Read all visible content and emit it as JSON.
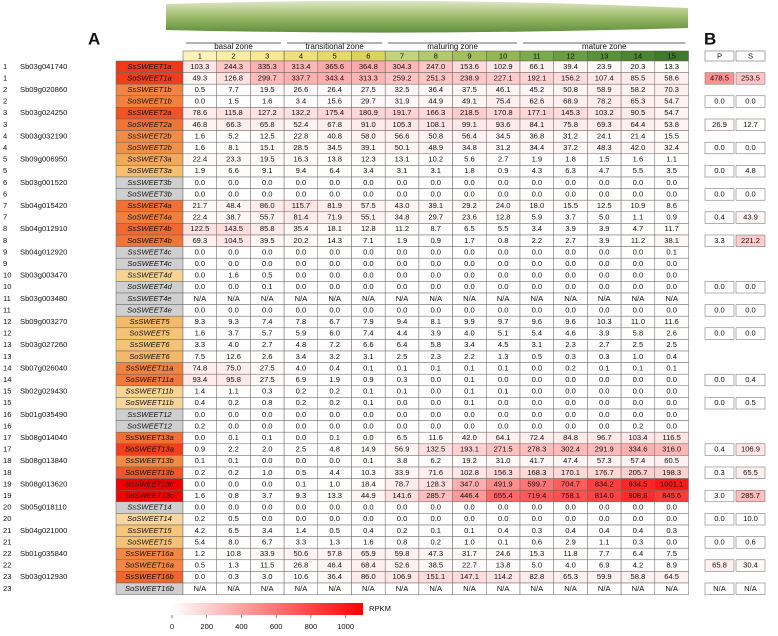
{
  "header": {
    "panel_a": "A",
    "panel_b": "B",
    "zones": [
      {
        "label": "basal zone",
        "columns": [
          "1",
          "2",
          "3"
        ]
      },
      {
        "label": "transitional zone",
        "columns": [
          "4",
          "5",
          "6"
        ]
      },
      {
        "label": "maturing zone",
        "columns": [
          "7",
          "8",
          "9",
          "10"
        ]
      },
      {
        "label": "mature zone",
        "columns": [
          "11",
          "12",
          "13",
          "14",
          "15"
        ]
      }
    ],
    "b_columns": [
      "P",
      "S"
    ]
  },
  "rows": [
    {
      "index": "1",
      "locus": "Sb03g041740",
      "gene": "SsSWEET1a",
      "values": [
        "103.3",
        "244.3",
        "335.3",
        "313.4",
        "365.6",
        "364.8",
        "304.3",
        "247.0",
        "153.6",
        "102.9",
        "66.1",
        "39.4",
        "23.9",
        "20.3",
        "13.3"
      ]
    },
    {
      "index": "1",
      "gene": "SoSWEET1a",
      "values": [
        "49.3",
        "126.8",
        "299.7",
        "337.7",
        "343.4",
        "313.3",
        "259.2",
        "251.3",
        "238.9",
        "227.1",
        "192.1",
        "156.2",
        "107.4",
        "85.5",
        "58.6"
      ],
      "b_values": [
        "478.5",
        "253.5"
      ]
    },
    {
      "index": "2",
      "locus": "Sb09g020860",
      "gene": "SsSWEET1b",
      "values": [
        "0.5",
        "7.7",
        "19.5",
        "26.6",
        "26.4",
        "27.5",
        "32.5",
        "36.4",
        "37.5",
        "46.1",
        "45.2",
        "50.8",
        "58.9",
        "58.2",
        "70.3"
      ]
    },
    {
      "index": "2",
      "gene": "SoSWEET1b",
      "values": [
        "0.0",
        "1.5",
        "1.6",
        "3.4",
        "15.6",
        "29.7",
        "31.9",
        "44.9",
        "49.1",
        "75.4",
        "62.6",
        "68.9",
        "78.2",
        "65.3",
        "54.7"
      ],
      "b_values": [
        "0.0",
        "0.0"
      ]
    },
    {
      "index": "3",
      "locus": "Sb03g024250",
      "gene": "SsSWEET2a",
      "values": [
        "78.6",
        "115.8",
        "127.2",
        "132.2",
        "175.4",
        "180.9",
        "191.7",
        "166.3",
        "218.5",
        "170.8",
        "177.1",
        "145.3",
        "103.2",
        "90.5",
        "54.7"
      ]
    },
    {
      "index": "3",
      "gene": "SoSWEET2a",
      "values": [
        "46.8",
        "66.3",
        "65.8",
        "52.4",
        "67.8",
        "91.0",
        "105.3",
        "108.1",
        "99.1",
        "93.6",
        "84.1",
        "75.8",
        "69.3",
        "64.4",
        "53.8"
      ],
      "b_values": [
        "26.9",
        "12.7"
      ]
    },
    {
      "index": "4",
      "locus": "Sb03g032190",
      "gene": "SsSWEET2b",
      "values": [
        "1.6",
        "5.2",
        "12.5",
        "22.8",
        "40.8",
        "58.0",
        "56.6",
        "50.8",
        "56.4",
        "34.5",
        "36.8",
        "31.2",
        "24.1",
        "21.4",
        "15.5"
      ]
    },
    {
      "index": "4",
      "gene": "SoSWEET2b",
      "values": [
        "1.6",
        "8.1",
        "15.1",
        "28.5",
        "34.5",
        "39.1",
        "50.1",
        "48.9",
        "34.8",
        "31.2",
        "34.4",
        "37.2",
        "48.3",
        "42.0",
        "32.4"
      ],
      "b_values": [
        "0.0",
        "0.0"
      ]
    },
    {
      "index": "5",
      "locus": "Sb09g006950",
      "gene": "SsSWEET3a",
      "values": [
        "22.4",
        "23.3",
        "19.5",
        "16.3",
        "13.8",
        "12.3",
        "13.1",
        "10.2",
        "5.6",
        "2.7",
        "1.9",
        "1.8",
        "1.5",
        "1.6",
        "1.1"
      ]
    },
    {
      "index": "5",
      "gene": "SoSWEET3a",
      "values": [
        "1.9",
        "6.6",
        "9.1",
        "9.4",
        "6.4",
        "3.4",
        "3.1",
        "3.1",
        "1.8",
        "0.9",
        "4.3",
        "6.3",
        "4.7",
        "5.5",
        "3.5"
      ],
      "b_values": [
        "0.0",
        "4.8"
      ]
    },
    {
      "index": "6",
      "locus": "Sb03g001520",
      "gene": "SsSWEET3b",
      "values": [
        "0.0",
        "0.0",
        "0.0",
        "0.0",
        "0.0",
        "0.0",
        "0.0",
        "0.0",
        "0.0",
        "0.0",
        "0.0",
        "0.0",
        "0.0",
        "0.0",
        "0.0"
      ]
    },
    {
      "index": "6",
      "gene": "SoSWEET3b",
      "values": [
        "0.0",
        "0.0",
        "0.0",
        "0.0",
        "0.0",
        "0.0",
        "0.0",
        "0.0",
        "0.0",
        "0.0",
        "0.0",
        "0.0",
        "0.0",
        "0.0",
        "0.0"
      ],
      "b_values": [
        "0.0",
        "0.0"
      ]
    },
    {
      "index": "7",
      "locus": "Sb04g015420",
      "gene": "SsSWEET4a",
      "values": [
        "21.7",
        "48.4",
        "86.0",
        "115.7",
        "81.9",
        "57.5",
        "43.0",
        "39.1",
        "29.2",
        "24.0",
        "18.0",
        "15.5",
        "12.5",
        "10.9",
        "8.6"
      ]
    },
    {
      "index": "7",
      "gene": "SoSWEET4a",
      "values": [
        "22.4",
        "38.7",
        "55.7",
        "81.4",
        "71.9",
        "55.1",
        "34.8",
        "29.7",
        "23.6",
        "12.8",
        "5.9",
        "3.7",
        "5.0",
        "1.1",
        "0.9"
      ],
      "b_values": [
        "0.4",
        "43.9"
      ]
    },
    {
      "index": "8",
      "locus": "Sb04g012910",
      "gene": "SsSWEET4b",
      "values": [
        "122.5",
        "143.5",
        "85.8",
        "35.4",
        "18.1",
        "12.8",
        "11.2",
        "8.7",
        "6.5",
        "5.5",
        "3.4",
        "3.9",
        "3.9",
        "4.7",
        "11.7"
      ]
    },
    {
      "index": "8",
      "gene": "SoSWEET4b",
      "values": [
        "69.3",
        "104.5",
        "39.5",
        "20.2",
        "14.3",
        "7.1",
        "1.9",
        "0.9",
        "1.7",
        "0.8",
        "2.2",
        "2.7",
        "3.9",
        "11.2",
        "38.1"
      ],
      "b_values": [
        "3.3",
        "221.2"
      ]
    },
    {
      "index": "9",
      "locus": "Sb04g012920",
      "gene": "SsSWEET4c",
      "values": [
        "0.0",
        "0.0",
        "0.0",
        "0.0",
        "0.0",
        "0.0",
        "0.0",
        "0.0",
        "0.0",
        "0.0",
        "0.0",
        "0.0",
        "0.0",
        "0.0",
        "0.1"
      ]
    },
    {
      "index": "9",
      "gene": "SoSWEET4c",
      "values": [
        "0.0",
        "0.0",
        "0.0",
        "0.0",
        "0.0",
        "0.0",
        "0.0",
        "0.0",
        "0.0",
        "0.0",
        "0.0",
        "0.0",
        "0.0",
        "0.0",
        "0.0"
      ]
    },
    {
      "index": "10",
      "locus": "Sb03g003470",
      "gene": "SsSWEET4d",
      "values": [
        "0.0",
        "1.6",
        "0.5",
        "0.0",
        "0.0",
        "0.0",
        "0.0",
        "0.0",
        "0.0",
        "0.0",
        "0.0",
        "0.0",
        "0.0",
        "0.0",
        "0.0"
      ]
    },
    {
      "index": "10",
      "gene": "SoSWEET4d",
      "values": [
        "0.0",
        "0.0",
        "0.1",
        "0.0",
        "0.0",
        "0.0",
        "0.0",
        "0.0",
        "0.0",
        "0.0",
        "0.0",
        "0.0",
        "0.0",
        "0.0",
        "0.0"
      ],
      "b_values": [
        "0.0",
        "0.0"
      ]
    },
    {
      "index": "11",
      "locus": "Sb03g003480",
      "gene": "SsSWEET4e",
      "values": [
        "N/A",
        "N/A",
        "N/A",
        "N/A",
        "N/A",
        "N/A",
        "N/A",
        "N/A",
        "N/A",
        "N/A",
        "N/A",
        "N/A",
        "N/A",
        "N/A",
        "N/A"
      ]
    },
    {
      "index": "11",
      "gene": "SoSWEET4e",
      "values": [
        "0.0",
        "0.0",
        "0.0",
        "0.0",
        "0.0",
        "0.0",
        "0.0",
        "0.0",
        "0.0",
        "0.0",
        "0.0",
        "0.0",
        "0.0",
        "0.0",
        "0.0"
      ],
      "b_values": [
        "0.0",
        "0.0"
      ]
    },
    {
      "index": "12",
      "locus": "Sb09g003270",
      "gene": "SsSWEET5",
      "values": [
        "9.3",
        "9.3",
        "7.4",
        "7.8",
        "6.7",
        "7.9",
        "9.4",
        "8.1",
        "9.9",
        "9.7",
        "9.6",
        "9.6",
        "10.3",
        "11.0",
        "11.6"
      ]
    },
    {
      "index": "12",
      "gene": "SoSWEET5",
      "values": [
        "1.6",
        "3.7",
        "5.7",
        "5.9",
        "6.0",
        "7.4",
        "4.4",
        "3.9",
        "4.0",
        "5.1",
        "5.4",
        "4.6",
        "3.9",
        "5.8",
        "2.6"
      ],
      "b_values": [
        "0.0",
        "0.0"
      ]
    },
    {
      "index": "13",
      "locus": "Sb03g027260",
      "gene": "SsSWEET6",
      "values": [
        "3.3",
        "4.0",
        "2.7",
        "4.8",
        "7.2",
        "6.6",
        "6.4",
        "5.8",
        "3.4",
        "4.5",
        "3.1",
        "2.3",
        "2.7",
        "2.5",
        "2.5"
      ]
    },
    {
      "index": "13",
      "gene": "SoSWEET6",
      "values": [
        "7.5",
        "12.6",
        "2.6",
        "3.4",
        "3.2",
        "3.1",
        "2.5",
        "2.3",
        "2.2",
        "1.3",
        "0.5",
        "0.3",
        "0.3",
        "1.0",
        "0.4"
      ]
    },
    {
      "index": "14",
      "locus": "Sb07g026040",
      "gene": "SsSWEET11a",
      "values": [
        "74.8",
        "75.0",
        "27.5",
        "4.0",
        "0.4",
        "0.1",
        "0.1",
        "0.1",
        "0.1",
        "0.1",
        "0.0",
        "0.2",
        "0.1",
        "0.1",
        "0.1"
      ]
    },
    {
      "index": "14",
      "gene": "SoSWEET11a",
      "values": [
        "93.4",
        "95.8",
        "27.5",
        "6.9",
        "1.9",
        "0.9",
        "0.3",
        "0.0",
        "0.1",
        "0.0",
        "0.0",
        "0.0",
        "0.0",
        "0.0",
        "0.0"
      ],
      "b_values": [
        "0.0",
        "0.4"
      ]
    },
    {
      "index": "15",
      "locus": "Sb02g029430",
      "gene": "SsSWEET11b",
      "values": [
        "1.4",
        "1.1",
        "0.3",
        "0.2",
        "0.2",
        "0.1",
        "0.1",
        "0.0",
        "0.1",
        "0.1",
        "0.0",
        "0.0",
        "0.0",
        "0.0",
        "0.0"
      ]
    },
    {
      "index": "15",
      "gene": "SoSWEET11b",
      "values": [
        "0.4",
        "0.2",
        "0.8",
        "0.2",
        "0.2",
        "0.1",
        "0.0",
        "0.0",
        "0.1",
        "0.0",
        "0.0",
        "0.0",
        "0.0",
        "0.0",
        "0.0"
      ],
      "b_values": [
        "0.0",
        "0.5"
      ]
    },
    {
      "index": "16",
      "locus": "Sb01g035490",
      "gene": "SsSWEET12",
      "values": [
        "0.0",
        "0.0",
        "0.0",
        "0.0",
        "0.0",
        "0.0",
        "0.0",
        "0.0",
        "0.0",
        "0.0",
        "0.0",
        "0.0",
        "0.0",
        "0.0",
        "0.0"
      ]
    },
    {
      "index": "16",
      "gene": "SoSWEET12",
      "values": [
        "0.2",
        "0.0",
        "0.0",
        "0.0",
        "0.0",
        "0.0",
        "0.0",
        "0.0",
        "0.0",
        "0.0",
        "0.0",
        "0.0",
        "0.0",
        "0.2",
        "0.0"
      ]
    },
    {
      "index": "17",
      "locus": "Sb08g014040",
      "gene": "SsSWEET13a",
      "values": [
        "0.0",
        "0.1",
        "0.1",
        "0.0",
        "0.1",
        "0.0",
        "6.5",
        "11.6",
        "42.0",
        "64.1",
        "72.4",
        "84.8",
        "96.7",
        "103.4",
        "116.5"
      ]
    },
    {
      "index": "17",
      "gene": "SoSWEET13a",
      "values": [
        "0.9",
        "2.2",
        "2.0",
        "2.5",
        "4.8",
        "14.9",
        "56.9",
        "132.5",
        "193.1",
        "271.5",
        "278.3",
        "302.4",
        "291.9",
        "334.6",
        "316.0"
      ],
      "b_values": [
        "0.4",
        "106.9"
      ]
    },
    {
      "index": "18",
      "locus": "Sb08g013840",
      "gene": "SsSWEET13b",
      "values": [
        "0.1",
        "0.1",
        "0.0",
        "0.0",
        "0.0",
        "0.1",
        "3.8",
        "6.2",
        "19.2",
        "31.0",
        "41.7",
        "47.4",
        "57.3",
        "57.4",
        "60.5"
      ]
    },
    {
      "index": "18",
      "gene": "SoSWEET13b",
      "values": [
        "0.2",
        "0.2",
        "1.0",
        "0.5",
        "4.4",
        "10.3",
        "33.9",
        "71.6",
        "102.8",
        "156.3",
        "168.3",
        "170.1",
        "176.7",
        "205.7",
        "198.3"
      ],
      "b_values": [
        "0.3",
        "65.5"
      ]
    },
    {
      "index": "19",
      "locus": "Sb08g013620",
      "gene": "SsSWEET13c",
      "values": [
        "0.0",
        "0.0",
        "0.0",
        "0.1",
        "1.0",
        "18.4",
        "78.7",
        "128.3",
        "347.0",
        "491.9",
        "599.7",
        "704.7",
        "834.2",
        "934.5",
        "1001.1"
      ]
    },
    {
      "index": "19",
      "gene": "SoSWEET13c",
      "values": [
        "1.6",
        "0.8",
        "3.7",
        "9.3",
        "13.3",
        "44.9",
        "141.6",
        "285.7",
        "446.4",
        "655.4",
        "719.4",
        "758.1",
        "814.0",
        "908.8",
        "845.6"
      ],
      "b_values": [
        "3.0",
        "285.7"
      ]
    },
    {
      "index": "20",
      "locus": "Sb05g018110",
      "gene": "SsSWEET14",
      "values": [
        "0.0",
        "0.0",
        "0.0",
        "0.0",
        "0.0",
        "0.0",
        "0.0",
        "0.0",
        "0.0",
        "0.0",
        "0.0",
        "0.0",
        "0.0",
        "0.0",
        "0.0"
      ]
    },
    {
      "index": "20",
      "gene": "SoSWEET14",
      "values": [
        "0.2",
        "0.5",
        "0.0",
        "0.0",
        "0.0",
        "0.0",
        "0.0",
        "0.0",
        "0.0",
        "0.0",
        "0.0",
        "0.0",
        "0.0",
        "0.0",
        "0.0"
      ],
      "b_values": [
        "0.0",
        "10.0"
      ]
    },
    {
      "index": "21",
      "locus": "Sb04g021000",
      "gene": "SsSWEET15",
      "values": [
        "4.2",
        "6.5",
        "3.4",
        "1.4",
        "0.5",
        "0.4",
        "0.2",
        "0.1",
        "0.1",
        "0.4",
        "0.3",
        "0.4",
        "0.4",
        "0.4",
        "0.3"
      ]
    },
    {
      "index": "21",
      "gene": "SoSWEET15",
      "values": [
        "5.4",
        "8.0",
        "6.7",
        "3.3",
        "1.3",
        "1.6",
        "0.8",
        "0.2",
        "1.0",
        "0.1",
        "0.6",
        "2.9",
        "1.1",
        "0.3",
        "0.0"
      ],
      "b_values": [
        "0.0",
        "0.6"
      ]
    },
    {
      "index": "22",
      "locus": "Sb01g035840",
      "gene": "SsSWEET16a",
      "values": [
        "1.2",
        "10.8",
        "33.9",
        "50.6",
        "57.8",
        "65.9",
        "59.8",
        "47.3",
        "31.7",
        "24.6",
        "15.3",
        "11.8",
        "7.7",
        "6.4",
        "7.5"
      ]
    },
    {
      "index": "22",
      "gene": "SoSWEET16a",
      "values": [
        "0.5",
        "1.3",
        "11.5",
        "26.8",
        "46.4",
        "68.4",
        "52.6",
        "38.5",
        "22.7",
        "13.8",
        "5.0",
        "4.0",
        "6.9",
        "4.2",
        "8.9"
      ],
      "b_values": [
        "65.8",
        "30.4"
      ]
    },
    {
      "index": "23",
      "locus": "Sb03g012930",
      "gene": "SsSWEET16b",
      "values": [
        "0.0",
        "0.3",
        "3.0",
        "10.6",
        "36.4",
        "86.0",
        "106.9",
        "151.1",
        "147.1",
        "114.2",
        "82.8",
        "65.3",
        "59.9",
        "58.8",
        "64.5"
      ]
    },
    {
      "index": "23",
      "gene": "SoSWEET16b",
      "values": [
        "N/A",
        "N/A",
        "N/A",
        "N/A",
        "N/A",
        "N/A",
        "N/A",
        "N/A",
        "N/A",
        "N/A",
        "N/A",
        "N/A",
        "N/A",
        "N/A",
        "N/A"
      ],
      "b_values": [
        "N/A",
        "N/A"
      ]
    }
  ],
  "color_scale": {
    "label": "RPKM",
    "lim": [
      0,
      1100
    ],
    "ticks": [
      0,
      200,
      400,
      600,
      800,
      1000
    ]
  }
}
